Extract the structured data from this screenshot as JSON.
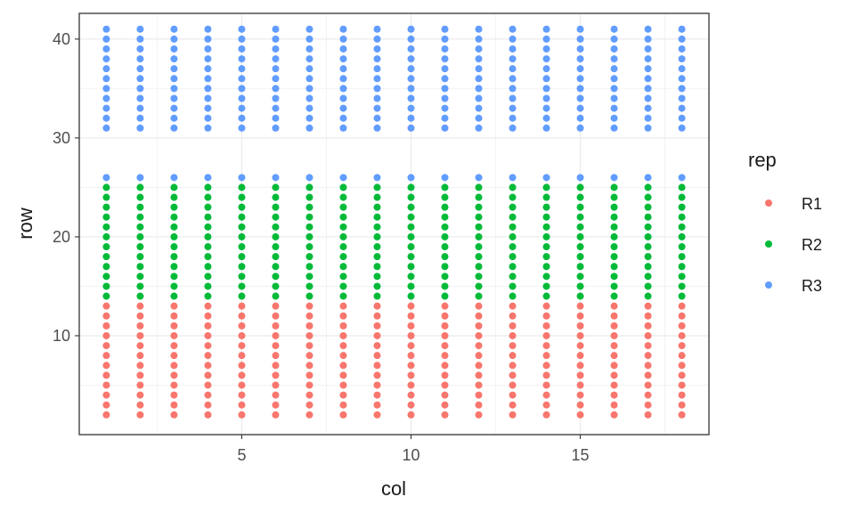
{
  "chart_data": {
    "type": "scatter",
    "xlabel": "col",
    "ylabel": "row",
    "xlim": [
      0.2,
      18.8
    ],
    "ylim": [
      0.0,
      42.6
    ],
    "x_ticks": [
      5,
      10,
      15
    ],
    "y_ticks": [
      10,
      20,
      30,
      40
    ],
    "x_tick_labels": [
      "5",
      "10",
      "15"
    ],
    "y_tick_labels": [
      "10",
      "20",
      "30",
      "40"
    ],
    "grid": true,
    "legend": {
      "title": "rep",
      "position": "right"
    },
    "columns": [
      1,
      2,
      3,
      4,
      5,
      6,
      7,
      8,
      9,
      10,
      11,
      12,
      13,
      14,
      15,
      16,
      17,
      18
    ],
    "series": [
      {
        "name": "R1",
        "color": "#F8766D",
        "rows": [
          2,
          13
        ]
      },
      {
        "name": "R2",
        "color": "#00BA38",
        "rows": [
          14,
          25
        ]
      },
      {
        "name": "R3",
        "color": "#619CFF",
        "rows_by_column": [
          [
            [
              26,
              26
            ],
            [
              31,
              41
            ]
          ]
        ]
      }
    ],
    "r3_lower_rows": [
      26
    ],
    "r3_upper_rows": [
      31,
      41
    ]
  }
}
